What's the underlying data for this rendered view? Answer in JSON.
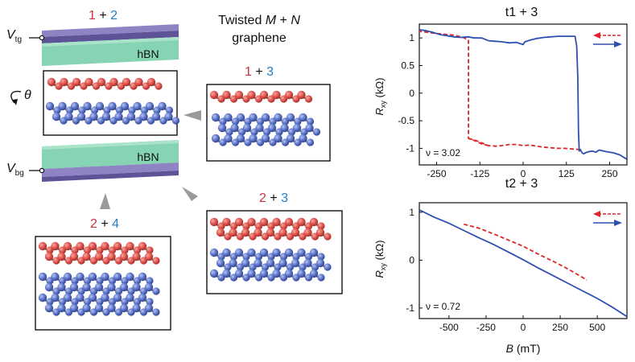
{
  "schematic": {
    "stack_label": {
      "a": "1",
      "plus": " + ",
      "b": "2"
    },
    "title_line1_prefix": "Twisted ",
    "title_m": "M",
    "title_plus": " + ",
    "title_n": "N",
    "title_line2": "graphene",
    "hbn_top": "hBN",
    "hbn_bottom": "hBN",
    "v_top": {
      "main": "V",
      "sub": "tg"
    },
    "v_bottom": {
      "main": "V",
      "sub": "bg"
    },
    "theta": "θ",
    "configs": [
      {
        "a": "1",
        "plus": " + ",
        "b": "3"
      },
      {
        "a": "2",
        "plus": " + ",
        "b": "3"
      },
      {
        "a": "2",
        "plus": " + ",
        "b": "4"
      }
    ]
  },
  "colors": {
    "top_layer": "#e0524c",
    "bottom_layer": "#5b74c9",
    "hbn": "#7fcfae",
    "gate": "#6f64a8",
    "sweep_down": "#e0242a",
    "sweep_up": "#2f4fb0",
    "label_red": "#c8323a",
    "label_blue": "#1f7fc7"
  },
  "chart_data": [
    {
      "type": "line",
      "title": "t1 + 3",
      "ylabel": "R",
      "ylabel_sub": "xy",
      "ylabel_unit": " (kΩ)",
      "xlim": [
        -300,
        300
      ],
      "ylim": [
        -1.3,
        1.25
      ],
      "xticks": [
        -250,
        -125,
        0,
        125,
        250
      ],
      "yticks": [
        1,
        0.5,
        0,
        -0.5,
        -1
      ],
      "annotation": "ν = 3.02",
      "legend": "top-right",
      "series": [
        {
          "dashed": true,
          "x": [
            -100,
            -120,
            -140,
            -150,
            -155,
            -158,
            -158,
            -160,
            -165,
            -170,
            -180,
            -200,
            -250,
            -300
          ],
          "y": [
            -0.95,
            -0.92,
            -0.86,
            -0.84,
            -0.83,
            -0.82,
            0.95,
            0.97,
            0.98,
            1.0,
            1.02,
            1.05,
            1.08,
            1.12
          ]
        },
        {
          "dashed": true,
          "x": [
            -158,
            -140,
            -120,
            -100,
            -80,
            -60,
            -40,
            -20,
            0,
            20,
            40,
            60,
            80,
            100,
            120,
            140,
            160
          ],
          "y": [
            -0.82,
            -0.85,
            -0.9,
            -0.95,
            -0.96,
            -0.95,
            -0.93,
            -0.93,
            -0.95,
            -0.94,
            -0.96,
            -0.98,
            -0.99,
            -1.0,
            -1.0,
            -1.01,
            -1.02
          ]
        },
        {
          "dashed": false,
          "x": [
            -300,
            -280,
            -260,
            -240,
            -220,
            -200,
            -180,
            -160,
            -140,
            -120,
            -100,
            -80,
            -60,
            -40,
            -20,
            0,
            5,
            20,
            40,
            60,
            80,
            100,
            120,
            140,
            150,
            155,
            158,
            160,
            162,
            165,
            170,
            175,
            180,
            190,
            200,
            210,
            220,
            240,
            260,
            280,
            300
          ],
          "y": [
            1.15,
            1.13,
            1.1,
            1.06,
            1.04,
            1.02,
            1.01,
            1.02,
            1.0,
            1.0,
            0.95,
            0.94,
            0.93,
            0.91,
            0.92,
            0.88,
            0.93,
            0.96,
            0.99,
            1.01,
            1.02,
            1.03,
            1.03,
            1.03,
            1.03,
            0.85,
            0.3,
            -0.7,
            -1.05,
            -1.02,
            -1.08,
            -1.1,
            -1.08,
            -1.06,
            -1.05,
            -1.07,
            -1.03,
            -1.06,
            -1.08,
            -1.12,
            -1.2
          ]
        }
      ]
    },
    {
      "type": "line",
      "title": "t2 + 3",
      "xlabel": "B",
      "xlabel_unit": " (mT)",
      "ylabel": "R",
      "ylabel_sub": "xy",
      "ylabel_unit": " (kΩ)",
      "xlim": [
        -700,
        700
      ],
      "ylim": [
        -1.22,
        1.2
      ],
      "xticks": [
        -500,
        -250,
        0,
        250,
        500
      ],
      "yticks": [
        1,
        0,
        -1
      ],
      "annotation": "ν = 0.72",
      "legend": "top-right",
      "series": [
        {
          "dashed": true,
          "x": [
            -400,
            -300,
            -200,
            -100,
            0,
            100,
            200,
            300,
            400,
            430
          ],
          "y": [
            0.75,
            0.67,
            0.55,
            0.42,
            0.29,
            0.13,
            -0.02,
            -0.18,
            -0.36,
            -0.42
          ]
        },
        {
          "dashed": false,
          "x": [
            -700,
            -600,
            -500,
            -400,
            -300,
            -200,
            -100,
            0,
            100,
            200,
            300,
            400,
            450,
            500,
            600,
            700
          ],
          "y": [
            1.05,
            0.9,
            0.77,
            0.62,
            0.47,
            0.33,
            0.17,
            0.01,
            -0.16,
            -0.32,
            -0.48,
            -0.64,
            -0.72,
            -0.8,
            -0.98,
            -1.18
          ]
        }
      ]
    }
  ]
}
